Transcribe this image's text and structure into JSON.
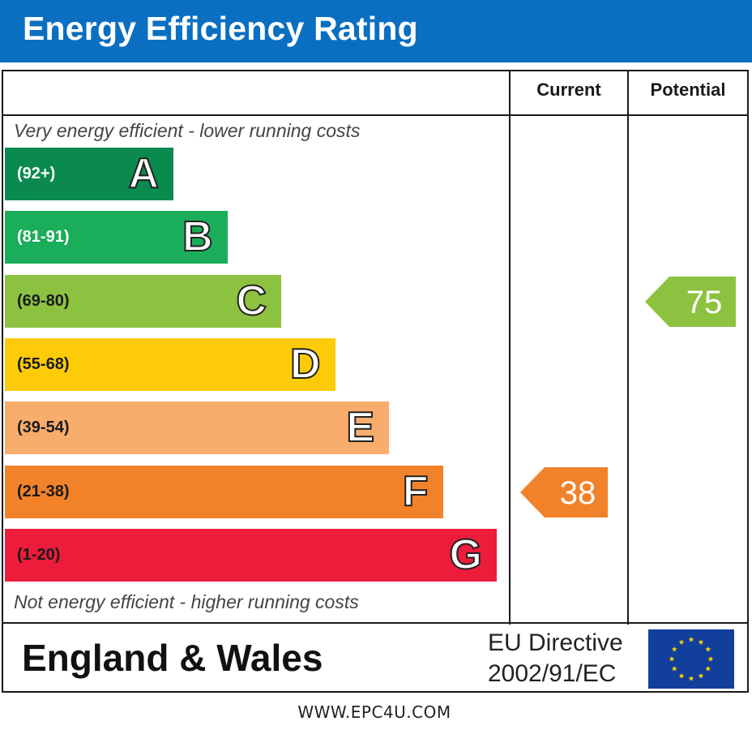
{
  "header": {
    "title": "Energy Efficiency Rating"
  },
  "columns": {
    "current": "Current",
    "potential": "Potential"
  },
  "notes": {
    "top": "Very energy efficient - lower running costs",
    "bottom": "Not energy efficient - higher running costs"
  },
  "chart_data": {
    "type": "bar",
    "title": "Energy Efficiency Rating",
    "categories": [
      "A",
      "B",
      "C",
      "D",
      "E",
      "F",
      "G"
    ],
    "ranges": [
      "(92+)",
      "(81-91)",
      "(69-80)",
      "(55-68)",
      "(39-54)",
      "(21-38)",
      "(1-20)"
    ],
    "colors": [
      "#0b8a4f",
      "#1aad5a",
      "#8cc23f",
      "#fecb08",
      "#f8ad6c",
      "#f1822a",
      "#ec1c3a"
    ],
    "range_text_colors": [
      "#ffffff",
      "#ffffff",
      "#1a1a1a",
      "#1a1a1a",
      "#1a1a1a",
      "#1a1a1a",
      "#1a1a1a"
    ],
    "current": {
      "value": 38,
      "band": "F",
      "color": "#f1822a"
    },
    "potential": {
      "value": 75,
      "band": "C",
      "color": "#8cc23f"
    }
  },
  "footer": {
    "region": "England & Wales",
    "directive_line1": "EU Directive",
    "directive_line2": "2002/91/EC",
    "flag_icon": "eu-flag-icon",
    "website": "WWW.EPC4U.COM"
  }
}
